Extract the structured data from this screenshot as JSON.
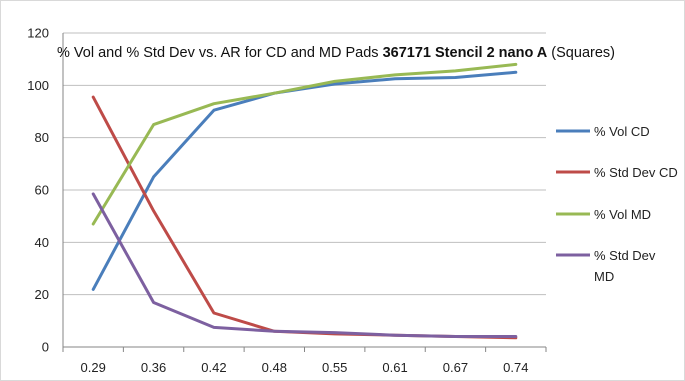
{
  "chart_data": {
    "type": "line",
    "title_parts": [
      {
        "text": "% Vol and % Std Dev vs. AR for CD and MD Pads ",
        "bold": false
      },
      {
        "text": "367171 Stencil 2 nano A",
        "bold": true
      },
      {
        "text": " (Squares)",
        "bold": false
      }
    ],
    "xlabel": "",
    "ylabel": "",
    "categories": [
      "0.29",
      "0.36",
      "0.42",
      "0.48",
      "0.55",
      "0.61",
      "0.67",
      "0.74"
    ],
    "ylim": [
      0,
      120
    ],
    "yticks": [
      0,
      20,
      40,
      60,
      80,
      100,
      120
    ],
    "grid": true,
    "legend_position": "right",
    "series": [
      {
        "name": "% Vol CD",
        "legend_lines": [
          "% Vol CD"
        ],
        "color": "#4a7ebb",
        "values": [
          22,
          65,
          90.5,
          97,
          100.5,
          102.5,
          103,
          105
        ]
      },
      {
        "name": "% Std Dev CD",
        "legend_lines": [
          "% Std Dev CD"
        ],
        "color": "#be4b48",
        "values": [
          95.5,
          52,
          13,
          6,
          5,
          4.5,
          4,
          3.5
        ]
      },
      {
        "name": "% Vol MD",
        "legend_lines": [
          "% Vol MD"
        ],
        "color": "#98b954",
        "values": [
          47,
          85,
          93,
          97,
          101.5,
          104,
          105.5,
          108
        ]
      },
      {
        "name": "% Std Dev MD",
        "legend_lines": [
          "% Std Dev",
          "MD"
        ],
        "color": "#7d60a0",
        "values": [
          58.5,
          17,
          7.5,
          6,
          5.5,
          4.5,
          4,
          4
        ]
      }
    ]
  }
}
